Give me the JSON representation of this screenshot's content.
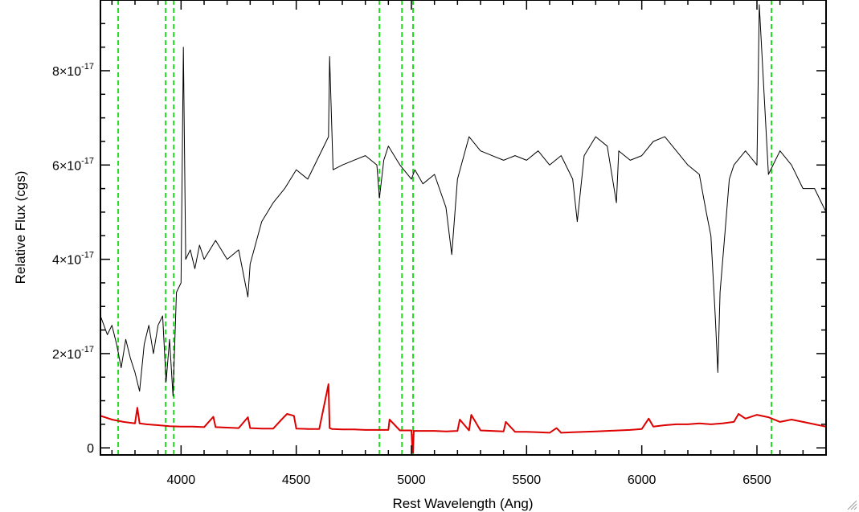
{
  "chart_data": {
    "type": "line",
    "xlabel": "Rest Wavelength (Ang)",
    "ylabel": "Relative Flux (cgs)",
    "xlim": [
      3650,
      6800
    ],
    "ylim": [
      -1.5e-18,
      9.5e-17
    ],
    "xticks": [
      {
        "value": 4000,
        "label": "4000"
      },
      {
        "value": 4500,
        "label": "4500"
      },
      {
        "value": 5000,
        "label": "5000"
      },
      {
        "value": 5500,
        "label": "5500"
      },
      {
        "value": 6000,
        "label": "6000"
      },
      {
        "value": 6500,
        "label": "6500"
      }
    ],
    "yticks": [
      {
        "value": 0,
        "label": "0",
        "mant": "",
        "exp": ""
      },
      {
        "value": 2e-17,
        "label": "",
        "mant": "2×10",
        "exp": "-17"
      },
      {
        "value": 4e-17,
        "label": "",
        "mant": "4×10",
        "exp": "-17"
      },
      {
        "value": 6e-17,
        "label": "",
        "mant": "6×10",
        "exp": "-17"
      },
      {
        "value": 8e-17,
        "label": "",
        "mant": "8×10",
        "exp": "-17"
      }
    ],
    "vlines": [
      3727,
      3933,
      3968,
      4861,
      4959,
      5007,
      6563
    ],
    "series": [
      {
        "color": "#000000",
        "x": [
          3650,
          3680,
          3700,
          3720,
          3740,
          3760,
          3780,
          3800,
          3820,
          3840,
          3860,
          3880,
          3900,
          3920,
          3935,
          3950,
          3965,
          3980,
          4000,
          4010,
          4020,
          4040,
          4060,
          4080,
          4100,
          4150,
          4200,
          4250,
          4290,
          4300,
          4350,
          4400,
          4450,
          4500,
          4550,
          4600,
          4640,
          4645,
          4660,
          4700,
          4750,
          4800,
          4850,
          4861,
          4880,
          4900,
          4950,
          5000,
          5015,
          5050,
          5100,
          5150,
          5175,
          5200,
          5250,
          5300,
          5350,
          5400,
          5450,
          5500,
          5550,
          5600,
          5650,
          5700,
          5720,
          5750,
          5800,
          5850,
          5890,
          5900,
          5950,
          6000,
          6050,
          6100,
          6150,
          6200,
          6250,
          6280,
          6300,
          6320,
          6330,
          6340,
          6360,
          6380,
          6400,
          6450,
          6500,
          6510,
          6550,
          6600,
          6650,
          6700,
          6750,
          6800
        ],
        "y": [
          2.8e-17,
          2.4e-17,
          2.6e-17,
          2.2e-17,
          1.7e-17,
          2.3e-17,
          1.9e-17,
          1.6e-17,
          1.2e-17,
          2.2e-17,
          2.6e-17,
          2e-17,
          2.6e-17,
          2.8e-17,
          1.4e-17,
          2.3e-17,
          1.1e-17,
          3.3e-17,
          3.5e-17,
          8.5e-17,
          4e-17,
          4.2e-17,
          3.8e-17,
          4.3e-17,
          4e-17,
          4.4e-17,
          4e-17,
          4.2e-17,
          3.2e-17,
          3.9e-17,
          4.8e-17,
          5.2e-17,
          5.5e-17,
          5.9e-17,
          5.7e-17,
          6.2e-17,
          6.6e-17,
          8.3e-17,
          5.9e-17,
          6e-17,
          6.1e-17,
          6.2e-17,
          6e-17,
          5.3e-17,
          6.1e-17,
          6.4e-17,
          6e-17,
          5.7e-17,
          5.9e-17,
          5.6e-17,
          5.8e-17,
          5.1e-17,
          4.1e-17,
          5.7e-17,
          6.6e-17,
          6.3e-17,
          6.2e-17,
          6.1e-17,
          6.2e-17,
          6.1e-17,
          6.3e-17,
          6e-17,
          6.2e-17,
          5.7e-17,
          4.8e-17,
          6.2e-17,
          6.6e-17,
          6.4e-17,
          5.2e-17,
          6.3e-17,
          6.1e-17,
          6.2e-17,
          6.5e-17,
          6.6e-17,
          6.3e-17,
          6e-17,
          5.8e-17,
          5e-17,
          4.5e-17,
          2.7e-17,
          1.6e-17,
          3.3e-17,
          4.5e-17,
          5.7e-17,
          6e-17,
          6.3e-17,
          6e-17,
          9.4e-17,
          5.8e-17,
          6.3e-17,
          6e-17,
          5.5e-17,
          5.5e-17,
          5e-17
        ]
      },
      {
        "color": "#dd0000",
        "x": [
          3650,
          3700,
          3750,
          3800,
          3810,
          3820,
          3850,
          3900,
          3950,
          4000,
          4050,
          4100,
          4140,
          4150,
          4200,
          4250,
          4290,
          4300,
          4350,
          4400,
          4440,
          4460,
          4490,
          4500,
          4550,
          4600,
          4640,
          4645,
          4655,
          4700,
          4750,
          4800,
          4850,
          4900,
          4905,
          4950,
          5000,
          5005,
          5007,
          5010,
          5050,
          5100,
          5150,
          5200,
          5210,
          5250,
          5260,
          5300,
          5350,
          5400,
          5410,
          5450,
          5500,
          5550,
          5600,
          5630,
          5650,
          5700,
          5750,
          5800,
          5850,
          5900,
          5950,
          6000,
          6030,
          6050,
          6100,
          6150,
          6200,
          6250,
          6300,
          6350,
          6400,
          6420,
          6450,
          6500,
          6550,
          6600,
          6650,
          6700,
          6750,
          6800
        ],
        "y": [
          6.8e-18,
          6e-18,
          5.5e-18,
          5.2e-18,
          8.5e-18,
          5.2e-18,
          5e-18,
          4.8e-18,
          4.6e-18,
          4.5e-18,
          4.5e-18,
          4.4e-18,
          6.6e-18,
          4.4e-18,
          4.3e-18,
          4.2e-18,
          6.5e-18,
          4.2e-18,
          4.1e-18,
          4.1e-18,
          6.2e-18,
          7.2e-18,
          6.8e-18,
          4.1e-18,
          4e-18,
          4e-18,
          1.35e-17,
          4.2e-18,
          4e-18,
          3.9e-18,
          3.9e-18,
          3.8e-18,
          3.8e-18,
          3.8e-18,
          6e-18,
          3.7e-18,
          3.7e-18,
          -1e-18,
          -1e-18,
          3.6e-18,
          3.6e-18,
          3.6e-18,
          3.5e-18,
          3.6e-18,
          6e-18,
          3.7e-18,
          7e-18,
          3.7e-18,
          3.6e-18,
          3.5e-18,
          5.5e-18,
          3.4e-18,
          3.4e-18,
          3.3e-18,
          3.2e-18,
          4.2e-18,
          3.2e-18,
          3.3e-18,
          3.4e-18,
          3.5e-18,
          3.6e-18,
          3.7e-18,
          3.8e-18,
          4e-18,
          6.2e-18,
          4.5e-18,
          4.8e-18,
          5e-18,
          5e-18,
          5.2e-18,
          5e-18,
          5.2e-18,
          5.5e-18,
          7.2e-18,
          6.2e-18,
          7e-18,
          6.5e-18,
          5.5e-18,
          6e-18,
          5.5e-18,
          5e-18,
          4.5e-18
        ]
      }
    ],
    "colors": {
      "vline": "#22dd22",
      "axis": "#000000"
    }
  }
}
